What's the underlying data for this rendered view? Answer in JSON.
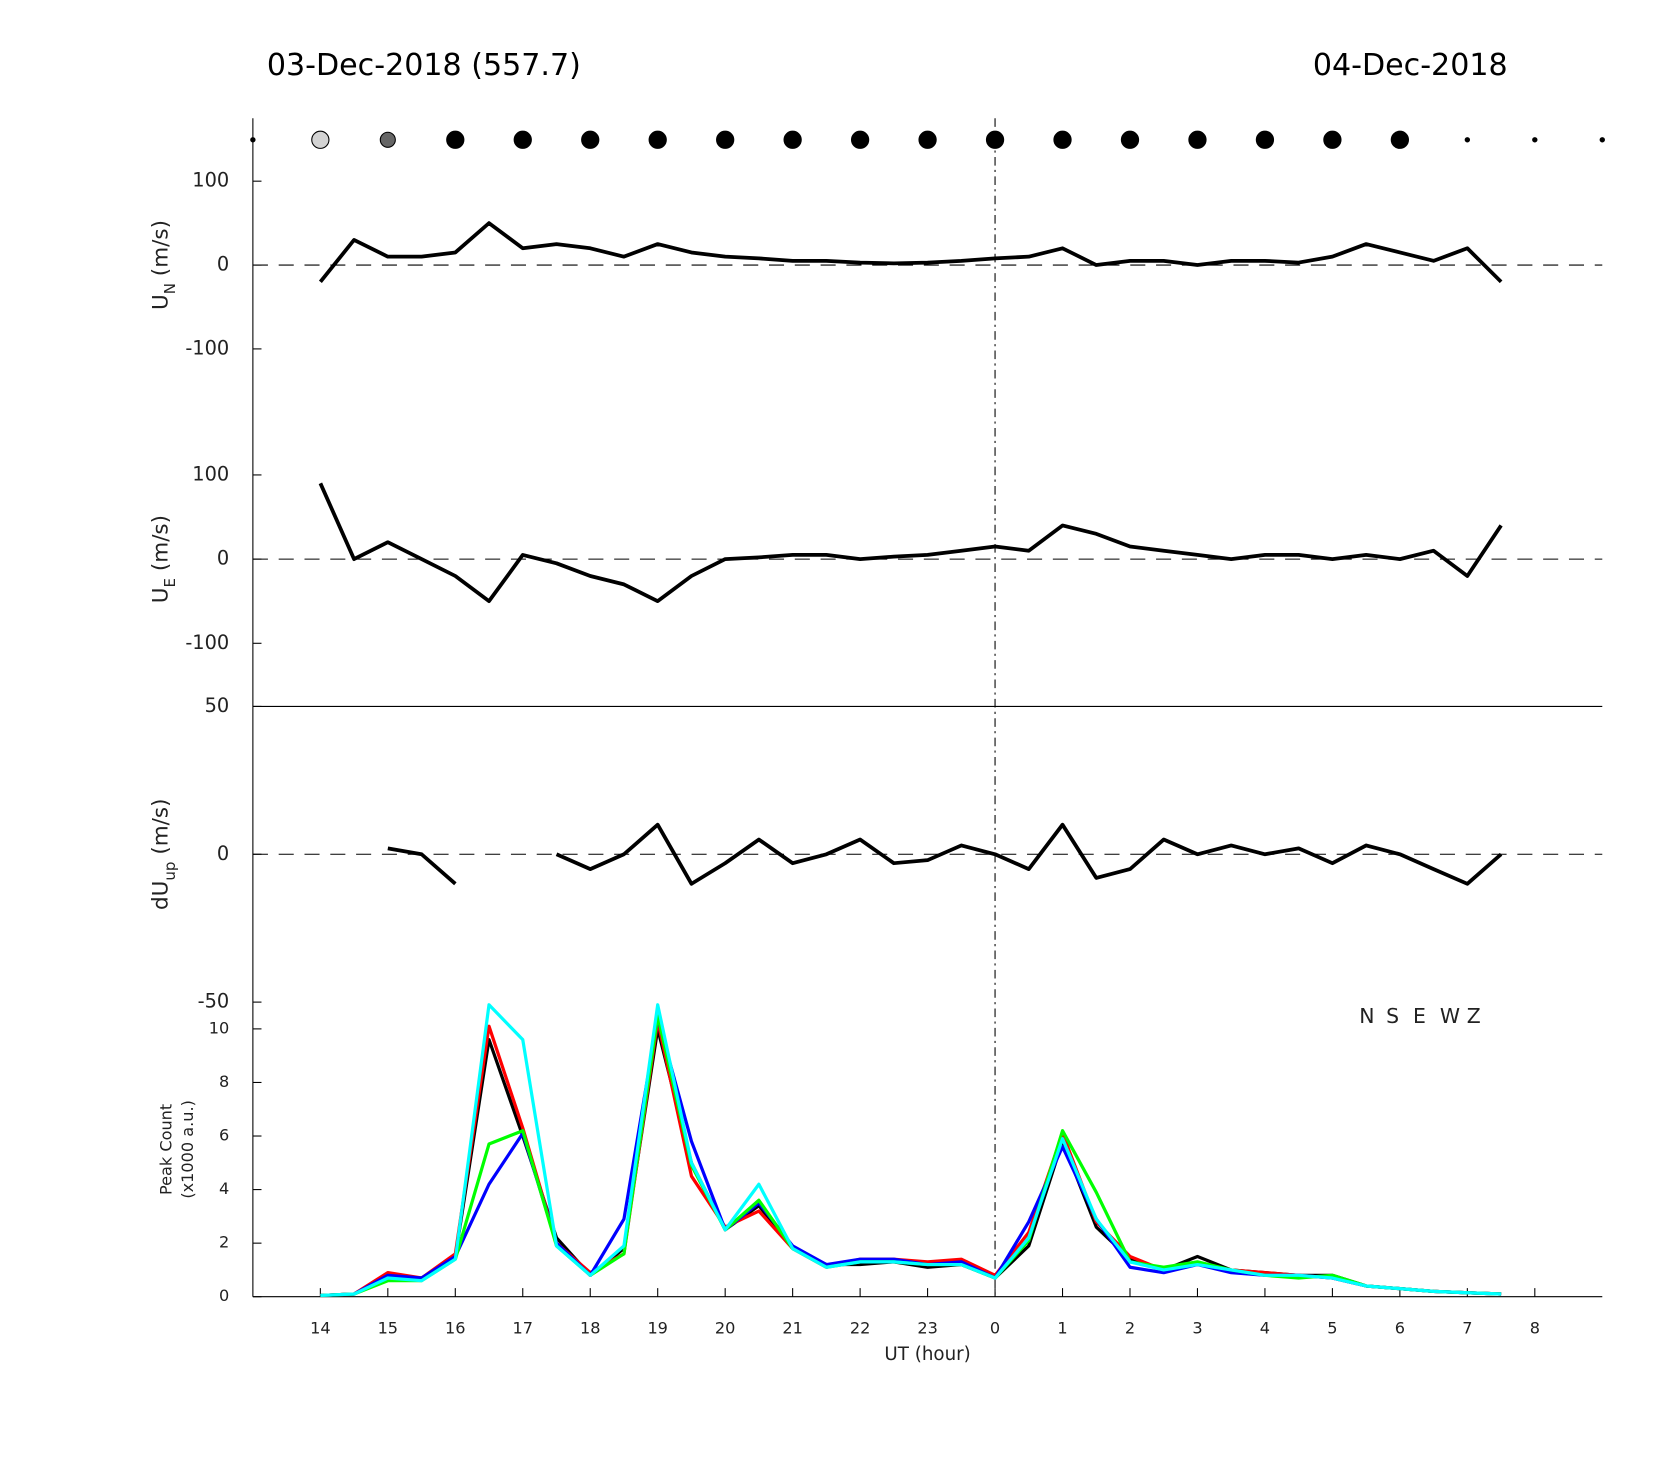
{
  "titles": {
    "left": "03-Dec-2018 (557.7)",
    "right": "04-Dec-2018"
  },
  "chart_data": [
    {
      "type": "line",
      "ylabel": {
        "main": "U",
        "sub": "N",
        "unit": " (m/s)"
      },
      "xlim": [
        13,
        33
      ],
      "ylim": [
        -175,
        175
      ],
      "yticks": [
        -100,
        0,
        100
      ],
      "dots": {
        "x": [
          13,
          14,
          15,
          16,
          17,
          18,
          19,
          20,
          21,
          22,
          23,
          24,
          25,
          26,
          27,
          28,
          29,
          30,
          31,
          32,
          33
        ],
        "sizes": [
          2,
          8,
          7,
          8,
          8,
          8,
          8,
          8,
          8,
          8,
          8,
          8,
          8,
          8,
          8,
          8,
          8,
          8,
          2,
          2,
          2
        ],
        "colors": [
          "#000",
          "#d3d3d3",
          "#666",
          "#000",
          "#000",
          "#000",
          "#000",
          "#000",
          "#000",
          "#000",
          "#000",
          "#000",
          "#000",
          "#000",
          "#000",
          "#000",
          "#000",
          "#000",
          "#000",
          "#000",
          "#000"
        ]
      },
      "x": [
        14,
        14.5,
        15,
        15.5,
        16,
        16.5,
        17,
        17.5,
        18,
        18.5,
        19,
        19.5,
        20,
        20.5,
        21,
        21.5,
        22,
        22.5,
        23,
        23.5,
        24,
        24.5,
        25,
        25.5,
        26,
        26.5,
        27,
        27.5,
        28,
        28.5,
        29,
        29.5,
        30,
        30.5,
        31,
        31.5
      ],
      "series": [
        {
          "name": "U_N",
          "color": "#000000",
          "values": [
            -20,
            30,
            10,
            10,
            15,
            50,
            20,
            25,
            20,
            10,
            25,
            15,
            10,
            8,
            5,
            5,
            3,
            2,
            3,
            5,
            8,
            10,
            20,
            0,
            5,
            5,
            0,
            5,
            5,
            3,
            10,
            25,
            15,
            5,
            20,
            -20
          ]
        }
      ]
    },
    {
      "type": "line",
      "ylabel": {
        "main": "U",
        "sub": "E",
        "unit": " (m/s)"
      },
      "xlim": [
        13,
        33
      ],
      "ylim": [
        -175,
        175
      ],
      "yticks": [
        -100,
        0,
        100
      ],
      "x": [
        14,
        14.5,
        15,
        15.5,
        16,
        16.5,
        17,
        17.5,
        18,
        18.5,
        19,
        19.5,
        20,
        20.5,
        21,
        21.5,
        22,
        22.5,
        23,
        23.5,
        24,
        24.5,
        25,
        25.5,
        26,
        26.5,
        27,
        27.5,
        28,
        28.5,
        29,
        29.5,
        30,
        30.5,
        31,
        31.5
      ],
      "series": [
        {
          "name": "U_E",
          "color": "#000000",
          "values": [
            90,
            0,
            20,
            0,
            -20,
            -50,
            5,
            -5,
            -20,
            -30,
            -50,
            -20,
            0,
            2,
            5,
            5,
            0,
            3,
            5,
            10,
            15,
            10,
            40,
            30,
            15,
            10,
            5,
            0,
            5,
            5,
            0,
            5,
            0,
            10,
            -20,
            40
          ]
        }
      ]
    },
    {
      "type": "line",
      "ylabel": {
        "main": "dU",
        "sub": "up",
        "unit": " (m/s)"
      },
      "xlim": [
        13,
        33
      ],
      "ylim": [
        -50,
        50
      ],
      "yticks": [
        -50,
        0,
        50
      ],
      "x": [
        14,
        14.5,
        15,
        15.5,
        16,
        16.5,
        17,
        17.5,
        18,
        18.5,
        19,
        19.5,
        20,
        20.5,
        21,
        21.5,
        22,
        22.5,
        23,
        23.5,
        24,
        24.5,
        25,
        25.5,
        26,
        26.5,
        27,
        27.5,
        28,
        28.5,
        29,
        29.5,
        30,
        30.5,
        31,
        31.5
      ],
      "series": [
        {
          "name": "dU_up",
          "color": "#000000",
          "values": [
            null,
            null,
            2,
            0,
            -10,
            null,
            null,
            0,
            -5,
            0,
            10,
            -10,
            -3,
            5,
            -3,
            0,
            5,
            -3,
            -2,
            3,
            0,
            -5,
            10,
            -8,
            -5,
            5,
            0,
            3,
            0,
            2,
            -3,
            3,
            0,
            -5,
            -10,
            0
          ]
        }
      ]
    },
    {
      "type": "line",
      "ylabel": {
        "line1": "Peak Count",
        "line2": "(x1000 a.u.)"
      },
      "xlabel": "UT (hour)",
      "xlim": [
        13,
        33
      ],
      "ylim": [
        0,
        11
      ],
      "yticks": [
        0,
        2,
        4,
        6,
        8,
        10
      ],
      "xticks": [
        14,
        15,
        16,
        17,
        18,
        19,
        20,
        21,
        22,
        23,
        {
          "value": 24,
          "label": "0"
        },
        {
          "value": 25,
          "label": "1"
        },
        {
          "value": 26,
          "label": "2"
        },
        {
          "value": 27,
          "label": "3"
        },
        {
          "value": 28,
          "label": "4"
        },
        {
          "value": 29,
          "label": "5"
        },
        {
          "value": 30,
          "label": "6"
        },
        {
          "value": 31,
          "label": "7"
        },
        {
          "value": 32,
          "label": "8"
        }
      ],
      "x": [
        14,
        14.5,
        15,
        15.5,
        16,
        16.5,
        17,
        17.5,
        18,
        18.5,
        19,
        19.5,
        20,
        20.5,
        21,
        21.5,
        22,
        22.5,
        23,
        23.5,
        24,
        24.5,
        25,
        25.5,
        26,
        26.5,
        27,
        27.5,
        28,
        28.5,
        29,
        29.5,
        30,
        30.5,
        31,
        31.5
      ],
      "series": [
        {
          "name": "N",
          "color": "#000000",
          "values": [
            0.05,
            0.1,
            0.8,
            0.7,
            1.5,
            9.6,
            6,
            2.2,
            0.8,
            1.8,
            10,
            5,
            2.5,
            3.4,
            1.8,
            1.2,
            1.2,
            1.3,
            1.1,
            1.2,
            0.7,
            1.9,
            5.8,
            2.6,
            1.4,
            1,
            1.5,
            1,
            0.9,
            0.8,
            0.8,
            0.4,
            0.3,
            0.2,
            0.15,
            0.1
          ]
        },
        {
          "name": "S",
          "color": "#ff0000",
          "values": [
            0.05,
            0.1,
            0.9,
            0.7,
            1.6,
            10.1,
            6.3,
            2,
            0.9,
            1.6,
            10.3,
            4.5,
            2.6,
            3.2,
            1.8,
            1.1,
            1.4,
            1.4,
            1.3,
            1.4,
            0.8,
            2.4,
            6.1,
            2.8,
            1.5,
            1,
            1.2,
            1,
            0.9,
            0.8,
            0.7,
            0.4,
            0.3,
            0.2,
            0.15,
            0.1
          ]
        },
        {
          "name": "E",
          "color": "#0000ff",
          "values": [
            0.05,
            0.1,
            0.8,
            0.7,
            1.5,
            4.2,
            6.1,
            2,
            0.8,
            2.9,
            10.4,
            5.8,
            2.5,
            3.5,
            1.9,
            1.2,
            1.4,
            1.4,
            1.2,
            1.3,
            0.7,
            2.8,
            5.6,
            2.9,
            1.1,
            0.9,
            1.2,
            0.9,
            0.8,
            0.8,
            0.7,
            0.4,
            0.3,
            0.2,
            0.15,
            0.1
          ]
        },
        {
          "name": "W",
          "color": "#00ff00",
          "values": [
            0.05,
            0.1,
            0.6,
            0.6,
            1.4,
            5.7,
            6.2,
            1.9,
            0.8,
            1.6,
            10.5,
            4.9,
            2.5,
            3.6,
            1.8,
            1.1,
            1.3,
            1.3,
            1.2,
            1.2,
            0.7,
            2.1,
            6.2,
            3.9,
            1.3,
            1.1,
            1.3,
            1,
            0.8,
            0.7,
            0.8,
            0.4,
            0.3,
            0.2,
            0.15,
            0.1
          ]
        },
        {
          "name": "Z",
          "color": "#00ffff",
          "values": [
            0.05,
            0.1,
            0.7,
            0.6,
            1.4,
            10.9,
            9.6,
            1.9,
            0.8,
            1.9,
            10.9,
            5,
            2.5,
            4.2,
            1.8,
            1.1,
            1.3,
            1.3,
            1.2,
            1.2,
            0.7,
            2.2,
            5.9,
            2.9,
            1.3,
            1,
            1.2,
            1,
            0.8,
            0.8,
            0.7,
            0.4,
            0.3,
            0.2,
            0.15,
            0.1
          ]
        }
      ]
    }
  ]
}
